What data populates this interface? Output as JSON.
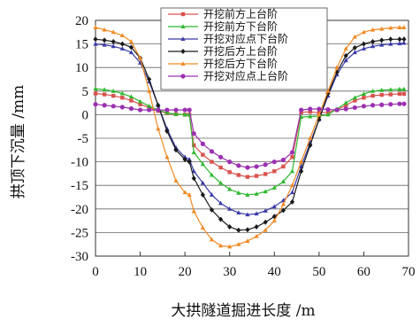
{
  "chart_data": {
    "type": "line",
    "title": "",
    "xlabel": "大拱隧道掘进长度 /m",
    "ylabel": "拱顶下沉量 /mm",
    "xlim": [
      0,
      70
    ],
    "ylim": [
      -30,
      20
    ],
    "xticks": [
      0,
      10,
      20,
      30,
      40,
      50,
      60,
      70
    ],
    "yticks": [
      20,
      15,
      10,
      5,
      0,
      -5,
      -10,
      -15,
      -20,
      -25,
      -30
    ],
    "grid": "horizontal",
    "legend_position": "top-center",
    "series": [
      {
        "name": "开挖前方上台阶",
        "color": "#d9534f",
        "marker": "square",
        "x": [
          0,
          2,
          4,
          6,
          8,
          10,
          12,
          14,
          16,
          18,
          20,
          21,
          22,
          24,
          26,
          28,
          30,
          32,
          34,
          36,
          38,
          40,
          42,
          44,
          46,
          48,
          50,
          52,
          54,
          56,
          58,
          60,
          62,
          64,
          66,
          68,
          69
        ],
        "y": [
          4.5,
          4.3,
          4,
          3.6,
          3,
          2.2,
          1.5,
          0.8,
          0.3,
          0.1,
          0,
          0,
          -6.5,
          -8.5,
          -10,
          -11.2,
          -12.2,
          -12.8,
          -13.2,
          -13,
          -12.6,
          -12,
          -11,
          -9,
          0.5,
          0.6,
          0.4,
          0.5,
          1,
          2,
          3,
          3.6,
          4,
          4.2,
          4.3,
          4.4,
          4.4
        ]
      },
      {
        "name": "开挖前方下台阶",
        "color": "#2eb82e",
        "marker": "triangle",
        "x": [
          0,
          2,
          4,
          6,
          8,
          10,
          12,
          14,
          16,
          18,
          20,
          21,
          22,
          24,
          26,
          28,
          30,
          32,
          34,
          36,
          38,
          40,
          42,
          44,
          46,
          48,
          50,
          52,
          54,
          56,
          58,
          60,
          62,
          64,
          66,
          68,
          69
        ],
        "y": [
          5.5,
          5.3,
          5,
          4.5,
          3.8,
          2.8,
          1.8,
          1,
          0.4,
          0.1,
          0,
          0,
          -8,
          -10.5,
          -12.8,
          -14.5,
          -15.8,
          -16.6,
          -17,
          -16.8,
          -16.3,
          -15.5,
          -14.2,
          -12,
          -0.5,
          -0.4,
          -0.3,
          0,
          1.2,
          2.5,
          3.6,
          4.4,
          5,
          5.2,
          5.3,
          5.4,
          5.4
        ]
      },
      {
        "name": "开挖对应点下台阶",
        "color": "#3a3aa8",
        "marker": "triangle",
        "x": [
          0,
          2,
          4,
          6,
          8,
          10,
          12,
          14,
          16,
          18,
          20,
          21,
          22,
          24,
          26,
          28,
          30,
          32,
          34,
          36,
          38,
          40,
          42,
          44,
          46,
          48,
          50,
          52,
          54,
          56,
          58,
          60,
          62,
          64,
          66,
          68,
          69
        ],
        "y": [
          15,
          14.8,
          14.5,
          14,
          13.2,
          11,
          7,
          2,
          -3,
          -7,
          -9,
          -9.5,
          -12,
          -14.5,
          -17,
          -18.8,
          -20,
          -20.8,
          -21.2,
          -21,
          -20.4,
          -19.5,
          -18.2,
          -16.5,
          -11,
          -6,
          -1,
          4,
          8.5,
          11.5,
          13.2,
          14,
          14.5,
          14.8,
          15,
          15.1,
          15.2
        ]
      },
      {
        "name": "开挖后方上台阶",
        "color": "#1a1a1a",
        "marker": "diamond",
        "x": [
          0,
          2,
          4,
          6,
          8,
          10,
          12,
          14,
          16,
          18,
          20,
          21,
          22,
          24,
          26,
          28,
          30,
          32,
          34,
          36,
          38,
          40,
          42,
          44,
          46,
          48,
          50,
          52,
          54,
          56,
          58,
          60,
          62,
          64,
          66,
          68,
          69
        ],
        "y": [
          16,
          15.8,
          15.5,
          15,
          14.3,
          12,
          7.5,
          2,
          -3.5,
          -7.5,
          -9.5,
          -10,
          -13.5,
          -17,
          -20.2,
          -22.2,
          -23.8,
          -24.5,
          -24.4,
          -23.8,
          -22.8,
          -21.6,
          -20.3,
          -18.5,
          -12,
          -6.5,
          -1,
          4.5,
          9,
          12.5,
          14.2,
          15,
          15.5,
          15.8,
          16,
          16,
          16
        ]
      },
      {
        "name": "开挖后方下台阶",
        "color": "#f08a24",
        "marker": "triangle",
        "x": [
          0,
          2,
          4,
          6,
          8,
          10,
          12,
          14,
          16,
          18,
          20,
          21,
          22,
          24,
          26,
          28,
          30,
          32,
          34,
          36,
          38,
          40,
          42,
          44,
          46,
          48,
          50,
          52,
          54,
          56,
          58,
          60,
          62,
          64,
          66,
          68,
          69
        ],
        "y": [
          18.5,
          18,
          17.5,
          16.8,
          15.5,
          12,
          5,
          -3,
          -9,
          -14,
          -16.5,
          -17,
          -20.5,
          -24,
          -26.5,
          -27.8,
          -28,
          -27.5,
          -26.8,
          -25.8,
          -24.5,
          -22.5,
          -19,
          -15,
          -10,
          -5,
          0,
          5,
          10,
          14,
          16.5,
          17.5,
          18,
          18.2,
          18.4,
          18.5,
          18.5
        ]
      },
      {
        "name": "开挖对应点上台阶",
        "color": "#9b30b0",
        "marker": "circle",
        "x": [
          0,
          2,
          4,
          6,
          8,
          10,
          12,
          14,
          16,
          18,
          20,
          21,
          22,
          24,
          26,
          28,
          30,
          32,
          34,
          36,
          38,
          40,
          42,
          44,
          46,
          48,
          50,
          52,
          54,
          56,
          58,
          60,
          62,
          64,
          66,
          68,
          69
        ],
        "y": [
          2.2,
          2,
          1.8,
          1.6,
          1.3,
          1,
          1,
          1,
          1,
          1,
          1,
          1,
          -4,
          -6.2,
          -7.8,
          -9,
          -10,
          -10.8,
          -11.2,
          -11,
          -10.6,
          -10,
          -9.6,
          -8,
          1,
          1.2,
          1.2,
          1.1,
          1,
          1.2,
          1.5,
          1.8,
          2,
          2.1,
          2.2,
          2.3,
          2.3
        ]
      }
    ]
  }
}
